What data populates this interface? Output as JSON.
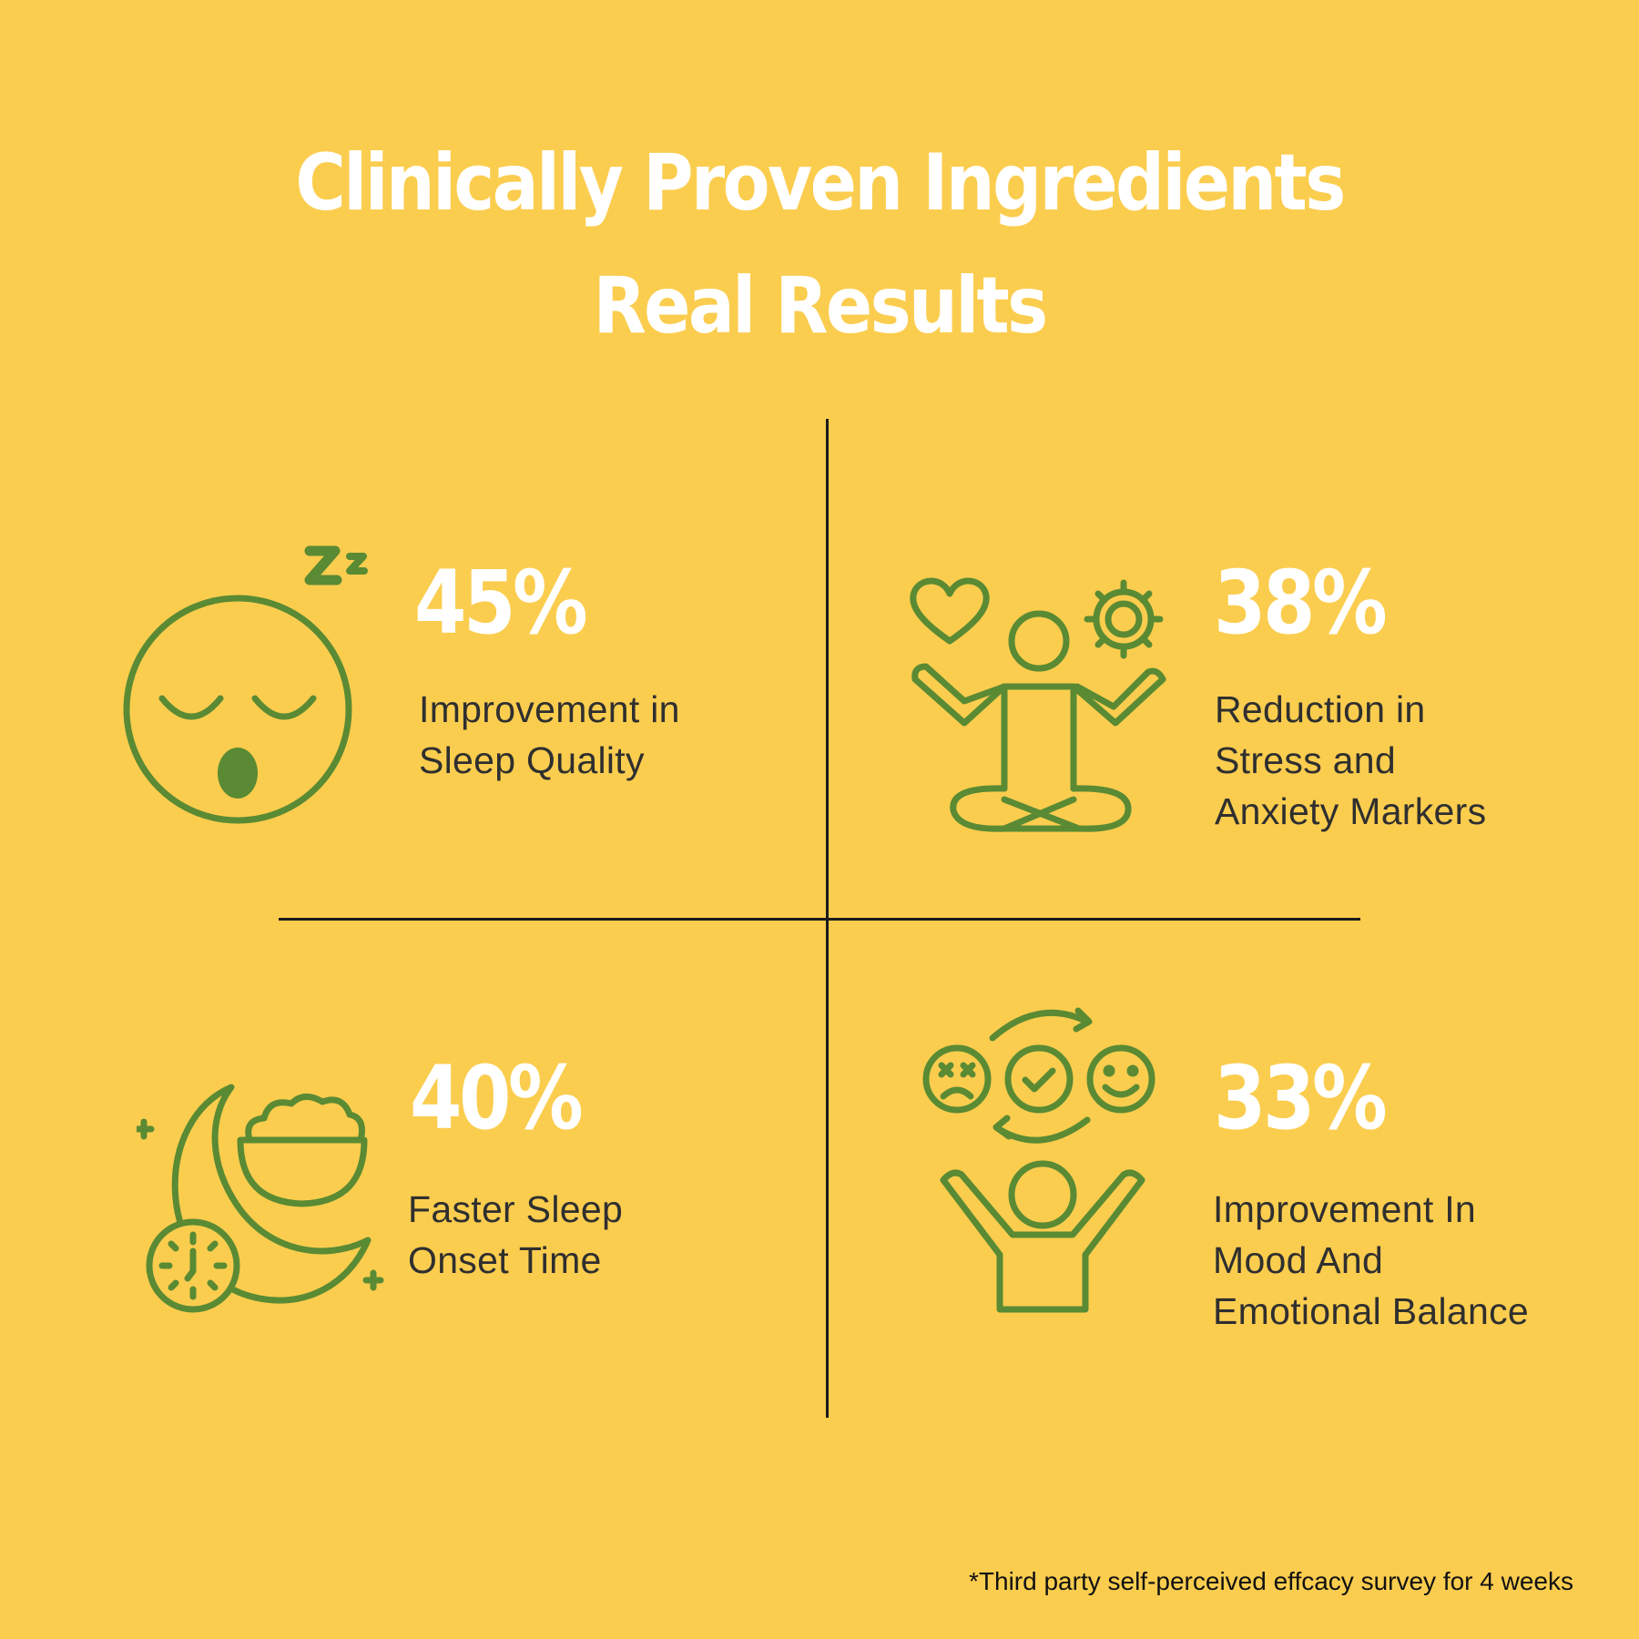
{
  "title": {
    "line1": "Clinically Proven Ingredients",
    "line2": "Real Results"
  },
  "colors": {
    "background": "#fbcd4f",
    "icon": "#5a8a33",
    "heading": "#ffffff",
    "body_text": "#2f2f2f",
    "divider": "#1b1b1b"
  },
  "stats": [
    {
      "value": "45%",
      "label_lines": [
        "Improvement in",
        "Sleep Quality"
      ],
      "icon": "sleeping-face-icon"
    },
    {
      "value": "38%",
      "label_lines": [
        "Reduction in",
        "Stress and",
        "Anxiety Markers"
      ],
      "icon": "meditation-icon"
    },
    {
      "value": "40%",
      "label_lines": [
        "Faster Sleep",
        "Onset Time"
      ],
      "icon": "moon-bowl-clock-icon"
    },
    {
      "value": "33%",
      "label_lines": [
        "Improvement In",
        "Mood And",
        "Emotional Balance"
      ],
      "icon": "mood-cycle-icon"
    }
  ],
  "footnote": "*Third party self-perceived effcacy survey for 4 weeks"
}
